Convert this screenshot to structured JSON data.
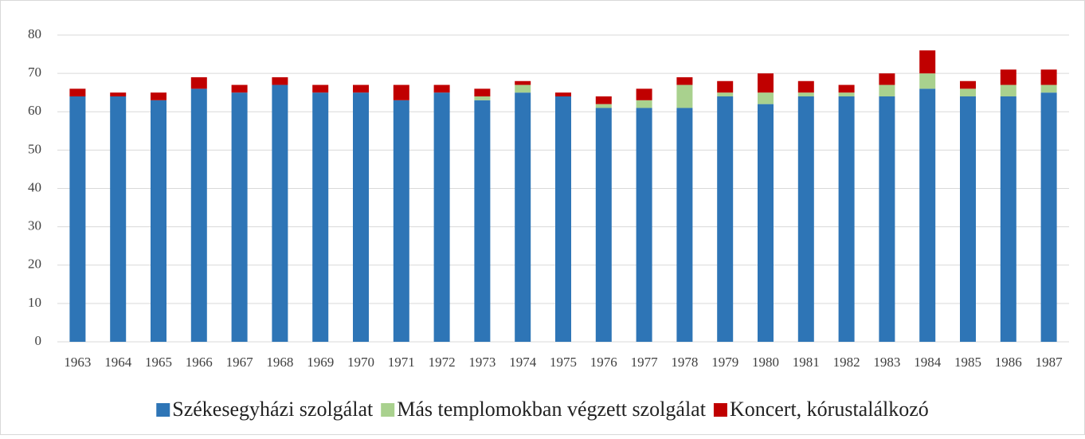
{
  "chart_data": {
    "type": "stacked_bar",
    "categories": [
      "1963",
      "1964",
      "1965",
      "1966",
      "1967",
      "1968",
      "1969",
      "1970",
      "1971",
      "1972",
      "1973",
      "1974",
      "1975",
      "1976",
      "1977",
      "1978",
      "1979",
      "1980",
      "1981",
      "1982",
      "1983",
      "1984",
      "1985",
      "1986",
      "1987"
    ],
    "series": [
      {
        "name": "Székesegyházi szolgálat",
        "color": "#2e75b6",
        "values": [
          64,
          64,
          63,
          66,
          65,
          67,
          65,
          65,
          63,
          65,
          63,
          65,
          64,
          61,
          61,
          61,
          64,
          62,
          64,
          64,
          64,
          66,
          64,
          64,
          65
        ]
      },
      {
        "name": "Más templomokban végzett szolgálat",
        "color": "#a9d18e",
        "values": [
          0,
          0,
          0,
          0,
          0,
          0,
          0,
          0,
          0,
          0,
          1,
          2,
          0,
          1,
          2,
          6,
          1,
          3,
          1,
          1,
          3,
          4,
          2,
          3,
          2
        ]
      },
      {
        "name": "Koncert, kórustalálkozó",
        "color": "#c00000",
        "values": [
          2,
          1,
          2,
          3,
          2,
          2,
          2,
          2,
          4,
          2,
          2,
          1,
          1,
          2,
          3,
          2,
          3,
          5,
          3,
          2,
          3,
          6,
          2,
          4,
          4
        ]
      }
    ],
    "ylim": [
      0,
      80
    ],
    "yticks": [
      0,
      10,
      20,
      30,
      40,
      50,
      60,
      70,
      80
    ],
    "grid": true,
    "legend": "bottom"
  }
}
